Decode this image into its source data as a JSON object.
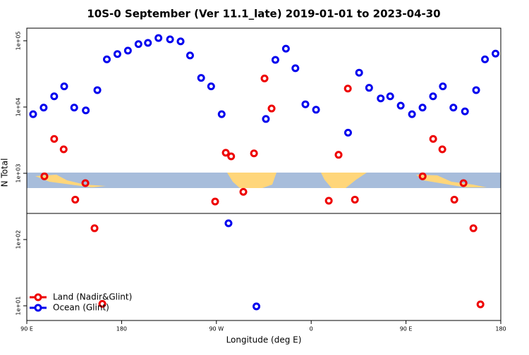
{
  "chart_data": {
    "type": "scatter",
    "title": "10S-0 September (Ver 11.1_late)   2019-01-01 to 2023-04-30",
    "x_label": "Longitude (deg E)",
    "y_label": "N Total",
    "log_y": true,
    "legend": "bottom-left",
    "xlim": [
      90,
      540
    ],
    "ylim": [
      6,
      155000
    ],
    "xticks": [
      {
        "value": 90,
        "label": "90 E"
      },
      180,
      {
        "value": 270,
        "label": "90 W"
      },
      {
        "value": 360,
        "label": "0"
      },
      {
        "value": 450,
        "label": "90 E"
      },
      {
        "value": 540,
        "label": "180"
      }
    ],
    "yticks": [
      {
        "value": 10,
        "label": "1e+01"
      },
      {
        "value": 100,
        "label": "1e+02"
      },
      {
        "value": 1000,
        "label": "1e+03"
      },
      {
        "value": 10000,
        "label": "1e+04"
      },
      {
        "value": 100000,
        "label": "1e+05"
      }
    ],
    "series": [
      {
        "name": "Land (Nadir&Glint)",
        "color": "#ee0000",
        "x": [
          106.7,
          116,
          125,
          136,
          145.6,
          154.3,
          161.7,
          268.8,
          278.9,
          284,
          295.6,
          305.7,
          315.7,
          322.4,
          376.7,
          386,
          394.8,
          401.5,
          465.8,
          475.8,
          484.5,
          495.9,
          504.6,
          514,
          520.7
        ],
        "values": [
          900,
          3300,
          2300,
          400,
          710,
          148,
          10.7,
          375,
          2040,
          1800,
          525,
          2000,
          27000,
          9500,
          385,
          1900,
          19000,
          400,
          900,
          3300,
          2300,
          400,
          710,
          148,
          10.5
        ]
      },
      {
        "name": "Ocean (Glint)",
        "color": "#0000ee",
        "x": [
          96,
          106,
          116,
          125.5,
          135,
          146,
          157,
          166,
          176,
          186,
          196,
          205,
          215,
          226,
          236,
          245,
          255.5,
          265,
          275,
          281.5,
          308,
          317,
          326,
          336,
          345,
          354.5,
          364.6,
          395,
          405.5,
          415,
          426,
          435,
          445,
          455.7,
          465.7,
          475.7,
          485,
          495,
          506,
          516.6,
          525,
          535
        ],
        "values": [
          7800,
          9800,
          14500,
          20500,
          9800,
          8900,
          18000,
          52500,
          63000,
          71000,
          89000,
          93000,
          110000,
          105000,
          98000,
          60000,
          27500,
          20500,
          7800,
          176,
          9.8,
          6600,
          51500,
          76000,
          38500,
          11000,
          9100,
          4100,
          33000,
          19500,
          13500,
          14500,
          10500,
          7800,
          9800,
          14500,
          20500,
          9800,
          8600,
          18000,
          52500,
          64000
        ]
      }
    ]
  }
}
